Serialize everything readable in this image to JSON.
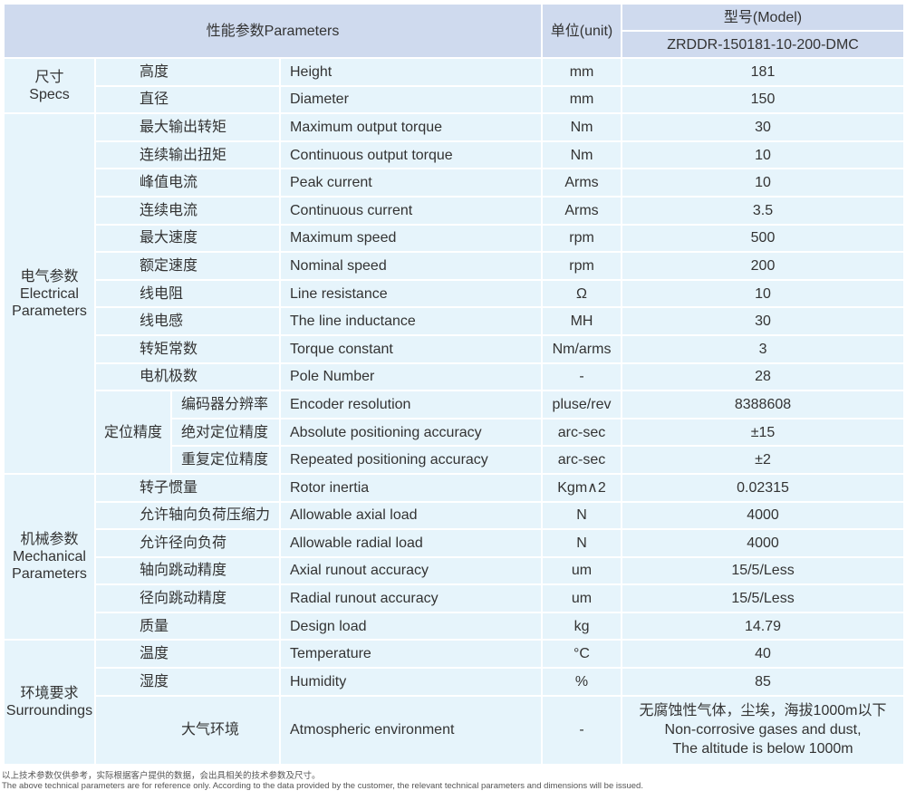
{
  "header": {
    "parameters": "性能参数Parameters",
    "unit": "单位(unit)",
    "model_label": "型号(Model)",
    "model": "ZRDDR-150181-10-200-DMC"
  },
  "groups": [
    {
      "zh": "尺寸",
      "en": "Specs",
      "rows": [
        {
          "zh": "高度",
          "en": "Height",
          "unit": "mm",
          "value": "181"
        },
        {
          "zh": "直径",
          "en": "Diameter",
          "unit": "mm",
          "value": "150"
        }
      ]
    },
    {
      "zh": "电气参数",
      "en": "Electrical Parameters",
      "rows": [
        {
          "zh": "最大输出转矩",
          "en": "Maximum output torque",
          "unit": "Nm",
          "value": "30"
        },
        {
          "zh": "连续输出扭矩",
          "en": "Continuous output torque",
          "unit": "Nm",
          "value": "10"
        },
        {
          "zh": "峰值电流",
          "en": "Peak current",
          "unit": "Arms",
          "value": "10"
        },
        {
          "zh": "连续电流",
          "en": "Continuous current",
          "unit": "Arms",
          "value": "3.5"
        },
        {
          "zh": "最大速度",
          "en": "Maximum speed",
          "unit": "rpm",
          "value": "500"
        },
        {
          "zh": "额定速度",
          "en": "Nominal speed",
          "unit": "rpm",
          "value": "200"
        },
        {
          "zh": "线电阻",
          "en": "Line resistance",
          "unit": "Ω",
          "value": "10"
        },
        {
          "zh": "线电感",
          "en": "The line inductance",
          "unit": "MH",
          "value": "30"
        },
        {
          "zh": "转矩常数",
          "en": "Torque constant",
          "unit": "Nm/arms",
          "value": "3"
        },
        {
          "zh": "电机极数",
          "en": "Pole Number",
          "unit": "-",
          "value": "28"
        },
        {
          "sub": "定位精度",
          "zh": "编码器分辨率",
          "en": "Encoder resolution",
          "unit": "pluse/rev",
          "value": "8388608"
        },
        {
          "zh": "绝对定位精度",
          "en": "Absolute positioning accuracy",
          "unit": "arc-sec",
          "value": "±15"
        },
        {
          "zh": "重复定位精度",
          "en": "Repeated positioning accuracy",
          "unit": "arc-sec",
          "value": "±2"
        }
      ]
    },
    {
      "zh": "机械参数",
      "en": "Mechanical Parameters",
      "rows": [
        {
          "zh": "转子惯量",
          "en": "Rotor inertia",
          "unit": "Kgm∧2",
          "value": "0.02315"
        },
        {
          "zh": "允许轴向负荷压缩力",
          "en": "Allowable axial load",
          "unit": "N",
          "value": "4000"
        },
        {
          "zh": "允许径向负荷",
          "en": "Allowable radial load",
          "unit": "N",
          "value": "4000"
        },
        {
          "zh": "轴向跳动精度",
          "en": "Axial runout accuracy",
          "unit": "um",
          "value": "15/5/Less"
        },
        {
          "zh": "径向跳动精度",
          "en": "Radial runout accuracy",
          "unit": "um",
          "value": "15/5/Less"
        },
        {
          "zh": "质量",
          "en": "Design load",
          "unit": "kg",
          "value": "14.79"
        }
      ]
    },
    {
      "zh": "环境要求",
      "en": "Surroundings",
      "rows": [
        {
          "zh": "温度",
          "en": "Temperature",
          "unit": "°C",
          "value": "40"
        },
        {
          "zh": "湿度",
          "en": "Humidity",
          "unit": "%",
          "value": "85"
        },
        {
          "zh": "大气环境",
          "en": "Atmospheric environment",
          "unit": "-",
          "value": "无腐蚀性气体，尘埃，海拔1000m以下 Non-corrosive gases and dust, The altitude is below 1000m",
          "value_lines": [
            "无腐蚀性气体，尘埃，海拔1000m以下",
            "Non-corrosive gases and dust,",
            "The altitude is below 1000m"
          ]
        }
      ]
    }
  ],
  "footnote": {
    "zh": "以上技术参数仅供参考，实际根据客户提供的数据，会出具相关的技术参数及尺寸。",
    "en": "The above technical parameters are for reference only. According to the data provided by the customer, the relevant technical parameters and dimensions will be issued."
  }
}
